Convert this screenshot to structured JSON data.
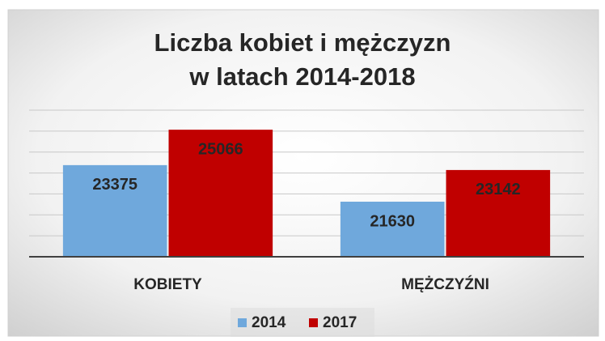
{
  "chart_data": {
    "type": "bar",
    "title": [
      "Liczba kobiet i mężczyzn",
      "w latach 2014-2018"
    ],
    "categories": [
      "KOBIETY",
      "MĘŻCZYŹNI"
    ],
    "series": [
      {
        "name": "2014",
        "color": "#6fa8dc",
        "values": [
          23375,
          21630
        ]
      },
      {
        "name": "2017",
        "color": "#c00000",
        "values": [
          25066,
          23142
        ]
      }
    ],
    "ylim": [
      19000,
      26000
    ],
    "yticks": [
      19000,
      20000,
      21000,
      22000,
      23000,
      24000,
      25000,
      26000
    ],
    "grid": true,
    "legend": "bottom"
  }
}
